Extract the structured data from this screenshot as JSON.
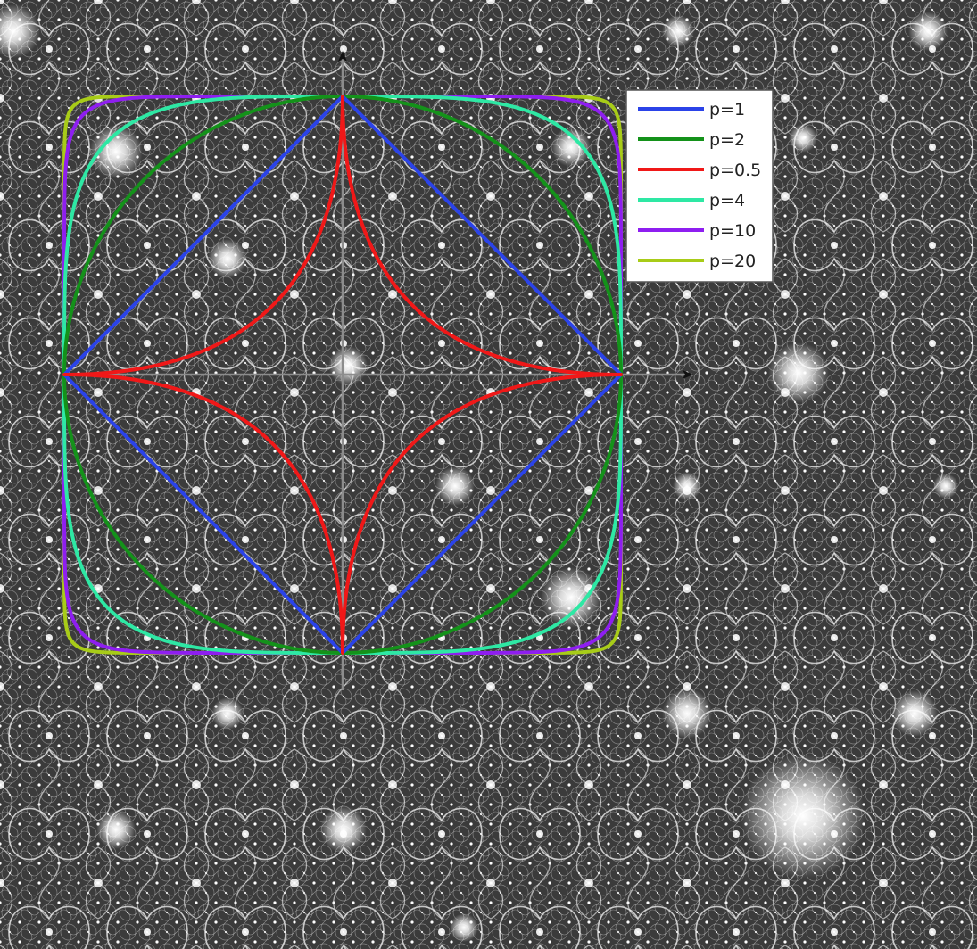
{
  "colors": {
    "background": "#3a3a3a",
    "texture_light": "#ffffff",
    "axis": "#8c8c8c",
    "arrowhead": "#111111",
    "legend_fill": "#ffffff",
    "legend_border": "#555555"
  },
  "diagram": {
    "title": "",
    "curve_family": "|x|^p + |y|^p = 1",
    "axis_range": [
      -1,
      1
    ],
    "legend_placement": "top-right",
    "curves": [
      {
        "label": "p=1",
        "p": 1,
        "color": "#2b43e8"
      },
      {
        "label": "p=2",
        "p": 2,
        "color": "#14921a"
      },
      {
        "label": "p=0.5",
        "p": 0.5,
        "color": "#f01818"
      },
      {
        "label": "p=4",
        "p": 4,
        "color": "#2ee8a4"
      },
      {
        "label": "p=10",
        "p": 10,
        "color": "#8e1ef0"
      },
      {
        "label": "p=20",
        "p": 20,
        "color": "#a8cc18"
      }
    ]
  }
}
